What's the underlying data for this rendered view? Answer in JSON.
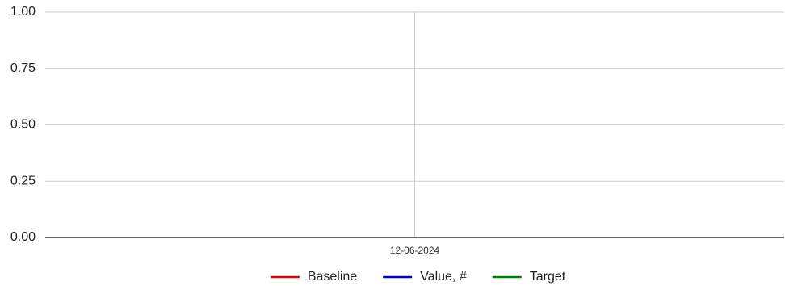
{
  "chart_data": {
    "type": "line",
    "categories": [
      "12-06-2024"
    ],
    "series": [
      {
        "name": "Baseline",
        "color": "#dd0000",
        "values": [
          null
        ]
      },
      {
        "name": "Value, #",
        "color": "#0000cc",
        "values": [
          null
        ]
      },
      {
        "name": "Target",
        "color": "#008000",
        "values": [
          null
        ]
      }
    ],
    "ylim": [
      0,
      1
    ],
    "yticks": [
      {
        "value": 0,
        "label": "0.00"
      },
      {
        "value": 0.25,
        "label": "0.25"
      },
      {
        "value": 0.5,
        "label": "0.50"
      },
      {
        "value": 0.75,
        "label": "0.75"
      },
      {
        "value": 1,
        "label": "1.00"
      }
    ],
    "grid": true,
    "legend": "bottom"
  }
}
